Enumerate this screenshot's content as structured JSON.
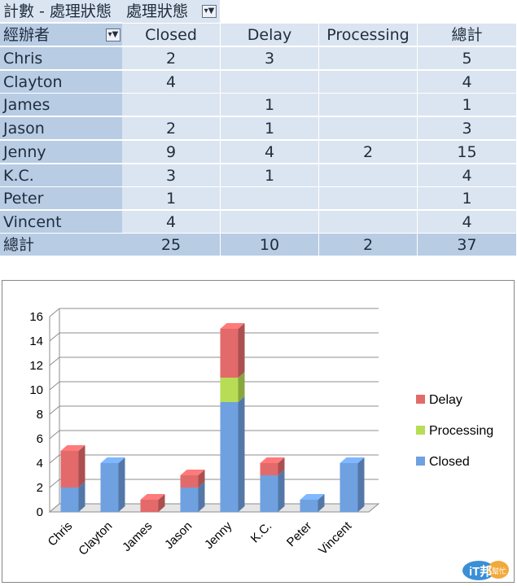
{
  "table": {
    "title_label": "計數 - 處理狀態",
    "status_field_label": "處理狀態",
    "row_field_label": "經辦者",
    "column_headers": [
      "Closed",
      "Delay",
      "Processing",
      "總計"
    ],
    "rows": [
      {
        "name": "Chris",
        "values": [
          "2",
          "3",
          "",
          "5"
        ]
      },
      {
        "name": "Clayton",
        "values": [
          "4",
          "",
          "",
          "4"
        ]
      },
      {
        "name": "James",
        "values": [
          "",
          "1",
          "",
          "1"
        ]
      },
      {
        "name": "Jason",
        "values": [
          "2",
          "1",
          "",
          "3"
        ]
      },
      {
        "name": "Jenny",
        "values": [
          "9",
          "4",
          "2",
          "15"
        ]
      },
      {
        "name": "K.C.",
        "values": [
          "3",
          "1",
          "",
          "4"
        ]
      },
      {
        "name": "Peter",
        "values": [
          "1",
          "",
          "",
          "1"
        ]
      },
      {
        "name": "Vincent",
        "values": [
          "4",
          "",
          "",
          "4"
        ]
      }
    ],
    "total_label": "總計",
    "total_values": [
      "25",
      "10",
      "2",
      "37"
    ]
  },
  "chart_data": {
    "type": "bar",
    "stacked": true,
    "three_d": true,
    "categories": [
      "Chris",
      "Clayton",
      "James",
      "Jason",
      "Jenny",
      "K.C.",
      "Peter",
      "Vincent"
    ],
    "series": [
      {
        "name": "Closed",
        "color": "#6fa0e0",
        "values": [
          2,
          4,
          0,
          2,
          9,
          3,
          1,
          4
        ]
      },
      {
        "name": "Processing",
        "color": "#b6dd54",
        "values": [
          0,
          0,
          0,
          0,
          2,
          0,
          0,
          0
        ]
      },
      {
        "name": "Delay",
        "color": "#e36a6a",
        "values": [
          3,
          0,
          1,
          1,
          4,
          1,
          0,
          0
        ]
      }
    ],
    "ylim": [
      0,
      16
    ],
    "y_ticks": [
      "0",
      "2",
      "4",
      "6",
      "8",
      "10",
      "12",
      "14",
      "16"
    ],
    "legend_position": "right",
    "legend_order": [
      "Delay",
      "Processing",
      "Closed"
    ],
    "grid": true
  },
  "watermark": {
    "logo_text": "iT邦",
    "logo_subtext": "幫忙"
  }
}
